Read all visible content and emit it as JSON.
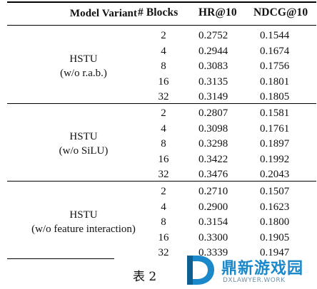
{
  "table": {
    "headers": {
      "variant": "Model Variant",
      "blocks": "# Blocks",
      "hr": "HR@10",
      "ndcg": "NDCG@10"
    },
    "groups": [
      {
        "name_line1": "HSTU",
        "name_line2": "(w/o r.a.b.)",
        "rows": [
          {
            "blocks": "2",
            "hr": "0.2752",
            "ndcg": "0.1544"
          },
          {
            "blocks": "4",
            "hr": "0.2944",
            "ndcg": "0.1674"
          },
          {
            "blocks": "8",
            "hr": "0.3083",
            "ndcg": "0.1756"
          },
          {
            "blocks": "16",
            "hr": "0.3135",
            "ndcg": "0.1801"
          },
          {
            "blocks": "32",
            "hr": "0.3149",
            "ndcg": "0.1805"
          }
        ]
      },
      {
        "name_line1": "HSTU",
        "name_line2": "(w/o SiLU)",
        "rows": [
          {
            "blocks": "2",
            "hr": "0.2807",
            "ndcg": "0.1581"
          },
          {
            "blocks": "4",
            "hr": "0.3098",
            "ndcg": "0.1761"
          },
          {
            "blocks": "8",
            "hr": "0.3298",
            "ndcg": "0.1897"
          },
          {
            "blocks": "16",
            "hr": "0.3422",
            "ndcg": "0.1992"
          },
          {
            "blocks": "32",
            "hr": "0.3476",
            "ndcg": "0.2043"
          }
        ]
      },
      {
        "name_line1": "HSTU",
        "name_line2": "(w/o feature interaction)",
        "rows": [
          {
            "blocks": "2",
            "hr": "0.2710",
            "ndcg": "0.1507"
          },
          {
            "blocks": "4",
            "hr": "0.2900",
            "ndcg": "0.1623"
          },
          {
            "blocks": "8",
            "hr": "0.3154",
            "ndcg": "0.1800"
          },
          {
            "blocks": "16",
            "hr": "0.3300",
            "ndcg": "0.1905"
          },
          {
            "blocks": "32",
            "hr": "0.3339",
            "ndcg": "0.1947"
          }
        ]
      }
    ]
  },
  "caption": "表 2",
  "watermark": {
    "title": "鼎新游戏园",
    "subtitle": "DXLAWYER.WORK",
    "color": "#1a88c9",
    "icon": "dx-logo-icon"
  }
}
